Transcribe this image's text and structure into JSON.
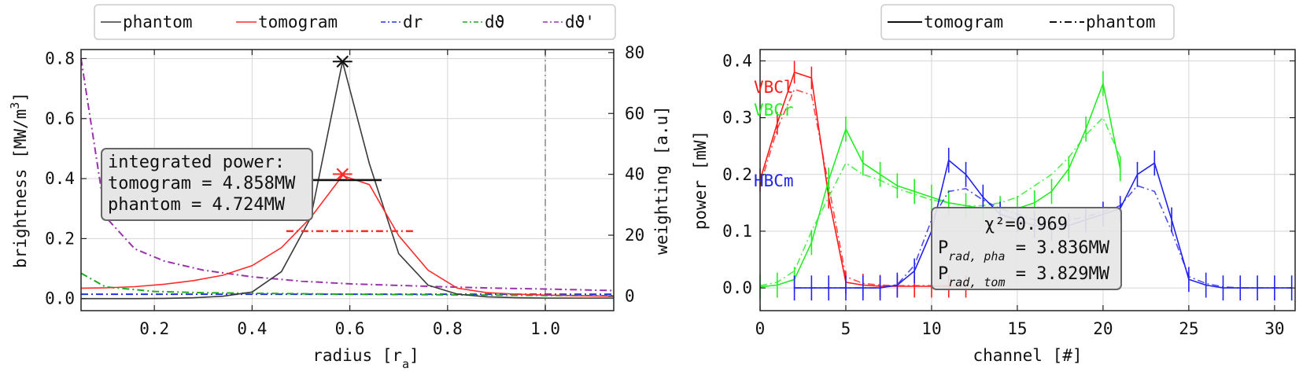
{
  "chart_data": [
    {
      "type": "line",
      "xlabel": "radius [r_a]",
      "ylabel": "brightness [MW/m^3]",
      "y2label": "weighting [a.u]",
      "xlim": [
        0.05,
        1.14
      ],
      "ylim": [
        -0.04,
        0.83
      ],
      "y2lim": [
        -4.8,
        81
      ],
      "xticks": [
        "0.2",
        "0.4",
        "0.6",
        "0.8",
        "1.0"
      ],
      "yticks": [
        "0.0",
        "0.2",
        "0.4",
        "0.6",
        "0.8"
      ],
      "y2ticks": [
        "0",
        "20",
        "40",
        "60",
        "80"
      ],
      "grid": true,
      "legend": {
        "location": "top, outside",
        "entries": [
          "phantom",
          "tomogram",
          "dr",
          "dϑ",
          "dϑ'"
        ]
      },
      "colors": {
        "phantom": "#3a3a3a",
        "tomogram": "#ff2a2a",
        "dr": "#2233dd",
        "dtheta": "#22aa22",
        "dtheta_prime": "#9933aa"
      },
      "series": [
        {
          "name": "phantom",
          "axis": "left",
          "style": "solid",
          "x": [
            0.05,
            0.1,
            0.16,
            0.22,
            0.28,
            0.34,
            0.4,
            0.46,
            0.52,
            0.585,
            0.64,
            0.7,
            0.76,
            0.82,
            0.88,
            0.94,
            1.0,
            1.06,
            1.14
          ],
          "y": [
            0.0,
            0.0,
            0.0,
            0.001,
            0.003,
            0.008,
            0.022,
            0.09,
            0.27,
            0.79,
            0.45,
            0.15,
            0.045,
            0.015,
            0.006,
            0.003,
            0.002,
            0.002,
            0.002
          ]
        },
        {
          "name": "tomogram",
          "axis": "left",
          "style": "solid",
          "x": [
            0.05,
            0.1,
            0.16,
            0.22,
            0.28,
            0.34,
            0.4,
            0.46,
            0.52,
            0.585,
            0.64,
            0.7,
            0.76,
            0.82,
            0.88,
            0.94,
            1.0,
            1.06,
            1.14
          ],
          "y": [
            0.035,
            0.036,
            0.04,
            0.048,
            0.06,
            0.078,
            0.11,
            0.17,
            0.27,
            0.41,
            0.38,
            0.21,
            0.095,
            0.035,
            0.02,
            0.015,
            0.012,
            0.01,
            0.008
          ]
        },
        {
          "name": "dr",
          "axis": "right",
          "style": "dashdot",
          "x": [
            0.05,
            0.2,
            0.4,
            0.6,
            0.8,
            1.0,
            1.14
          ],
          "y": [
            0.6,
            0.6,
            0.6,
            0.6,
            0.6,
            0.6,
            0.6
          ]
        },
        {
          "name": "dϑ",
          "axis": "right",
          "style": "dashdot",
          "x": [
            0.05,
            0.1,
            0.2,
            0.3,
            0.4,
            0.6,
            0.8,
            1.0,
            1.14
          ],
          "y": [
            7.5,
            3.0,
            1.5,
            1.1,
            0.9,
            0.6,
            0.4,
            0.2,
            0.1
          ]
        },
        {
          "name": "dϑ'",
          "axis": "right",
          "style": "dashdot",
          "x": [
            0.05,
            0.1,
            0.16,
            0.22,
            0.3,
            0.4,
            0.5,
            0.6,
            0.7,
            0.8,
            0.9,
            1.0,
            1.14
          ],
          "y": [
            78,
            26,
            15.5,
            11.5,
            8.5,
            6.3,
            4.9,
            4.0,
            3.5,
            3.0,
            2.6,
            2.3,
            1.8
          ]
        }
      ],
      "markers": [
        {
          "label": "phantom peak",
          "x": 0.585,
          "y": 0.79,
          "color": "#111111",
          "xerr": [
            0.565,
            0.605
          ]
        },
        {
          "label": "tomogram peak",
          "x": 0.585,
          "y": 0.415,
          "color": "#ff2a2a",
          "xerr": [
            0.565,
            0.605
          ]
        }
      ],
      "hbars": [
        {
          "y": 0.395,
          "x": [
            0.52,
            0.665
          ],
          "color": "#111111",
          "style": "solid"
        },
        {
          "y": 0.225,
          "x": [
            0.47,
            0.73
          ],
          "color": "#ff2a2a",
          "style": "dashdot"
        }
      ],
      "vline": {
        "x": 1.0,
        "color": "#888888",
        "style": "dashdot"
      },
      "annotation": {
        "line1": "integrated power:",
        "line2": "tomogram = 4.858MW",
        "line3": "phantom = 4.724MW"
      }
    },
    {
      "type": "line",
      "xlabel": "channel [#]",
      "ylabel": "power [mW]",
      "xlim": [
        0,
        31.2
      ],
      "ylim": [
        -0.04,
        0.42
      ],
      "xticks": [
        "0",
        "5",
        "10",
        "15",
        "20",
        "25",
        "30"
      ],
      "yticks": [
        "0.0",
        "0.1",
        "0.2",
        "0.3",
        "0.4"
      ],
      "grid": true,
      "legend": {
        "location": "top, outside",
        "entries": [
          "tomogram",
          "phantom"
        ]
      },
      "group_labels": [
        {
          "text": "VBCl",
          "color": "#ff1a1a"
        },
        {
          "text": "VBCr",
          "color": "#22ee22"
        },
        {
          "text": "HBCm",
          "color": "#2222ee"
        }
      ],
      "series": [
        {
          "name": "VBCl tomogram",
          "color": "#ff1a1a",
          "style": "solid",
          "x": [
            0,
            1,
            2,
            3,
            4,
            5,
            6,
            7,
            8,
            9,
            10,
            11,
            12
          ],
          "y": [
            0.19,
            0.29,
            0.38,
            0.37,
            0.16,
            0.01,
            0.005,
            0.003,
            0.003,
            0.003,
            0.003,
            0.003,
            0.003
          ],
          "err": 0.02
        },
        {
          "name": "VBCl phantom",
          "color": "#ff1a1a",
          "style": "dashdot",
          "x": [
            0,
            1,
            2,
            3,
            4,
            5,
            6,
            7,
            8,
            9,
            10,
            11,
            12
          ],
          "y": [
            0.18,
            0.28,
            0.35,
            0.34,
            0.18,
            0.02,
            0.008,
            0.005,
            0.004,
            0.004,
            0.004,
            0.004,
            0.004
          ]
        },
        {
          "name": "VBCr tomogram",
          "color": "#22ee22",
          "style": "solid",
          "x": [
            0,
            1,
            2,
            3,
            4,
            5,
            6,
            7,
            8,
            9,
            10,
            11,
            12,
            13,
            14,
            15,
            16,
            17,
            18,
            19,
            20,
            21
          ],
          "y": [
            0.002,
            0.005,
            0.015,
            0.08,
            0.19,
            0.28,
            0.22,
            0.2,
            0.18,
            0.17,
            0.16,
            0.15,
            0.145,
            0.14,
            0.14,
            0.14,
            0.15,
            0.17,
            0.21,
            0.28,
            0.36,
            0.21
          ],
          "err": 0.022
        },
        {
          "name": "VBCr phantom",
          "color": "#22ee22",
          "style": "dashdot",
          "x": [
            0,
            1,
            2,
            3,
            4,
            5,
            6,
            7,
            8,
            9,
            10,
            11,
            12,
            13,
            14,
            15,
            16,
            17,
            18,
            19,
            20,
            21
          ],
          "y": [
            0.004,
            0.01,
            0.03,
            0.1,
            0.16,
            0.22,
            0.2,
            0.19,
            0.175,
            0.165,
            0.155,
            0.15,
            0.145,
            0.145,
            0.15,
            0.16,
            0.18,
            0.2,
            0.23,
            0.27,
            0.3,
            0.23
          ]
        },
        {
          "name": "HBCm tomogram",
          "color": "#2222ee",
          "style": "solid",
          "x": [
            2,
            3,
            4,
            5,
            6,
            7,
            8,
            9,
            10,
            11,
            12,
            13,
            14,
            15,
            16,
            17,
            18,
            19,
            20,
            21,
            22,
            23,
            24,
            25,
            26,
            27,
            28,
            29,
            30,
            31
          ],
          "y": [
            0,
            0,
            0,
            0,
            0,
            0,
            0.005,
            0.03,
            0.1,
            0.225,
            0.2,
            0.16,
            0.13,
            0.12,
            0.11,
            0.105,
            0.11,
            0.12,
            0.13,
            0.14,
            0.2,
            0.22,
            0.12,
            0.015,
            0.005,
            0,
            0,
            0,
            0,
            0
          ],
          "err": 0.022
        },
        {
          "name": "HBCm phantom",
          "color": "#2222ee",
          "style": "dashdot",
          "x": [
            2,
            3,
            4,
            5,
            6,
            7,
            8,
            9,
            10,
            11,
            12,
            13,
            14,
            15,
            16,
            17,
            18,
            19,
            20,
            21,
            22,
            23,
            24,
            25,
            26,
            27,
            28,
            29,
            30,
            31
          ],
          "y": [
            0,
            0,
            0,
            0,
            0,
            0,
            0.006,
            0.04,
            0.12,
            0.17,
            0.175,
            0.155,
            0.14,
            0.13,
            0.12,
            0.115,
            0.12,
            0.125,
            0.135,
            0.145,
            0.18,
            0.17,
            0.1,
            0.02,
            0.008,
            0.002,
            0,
            0,
            0,
            0
          ]
        }
      ],
      "annotation": {
        "chi": "χ²=0.969",
        "line2_pre": "P",
        "line2_sub": "rad, pha",
        "line2_post": " = 3.836MW",
        "line3_pre": "P",
        "line3_sub": "rad, tom",
        "line3_post": " = 3.829MW"
      }
    }
  ]
}
